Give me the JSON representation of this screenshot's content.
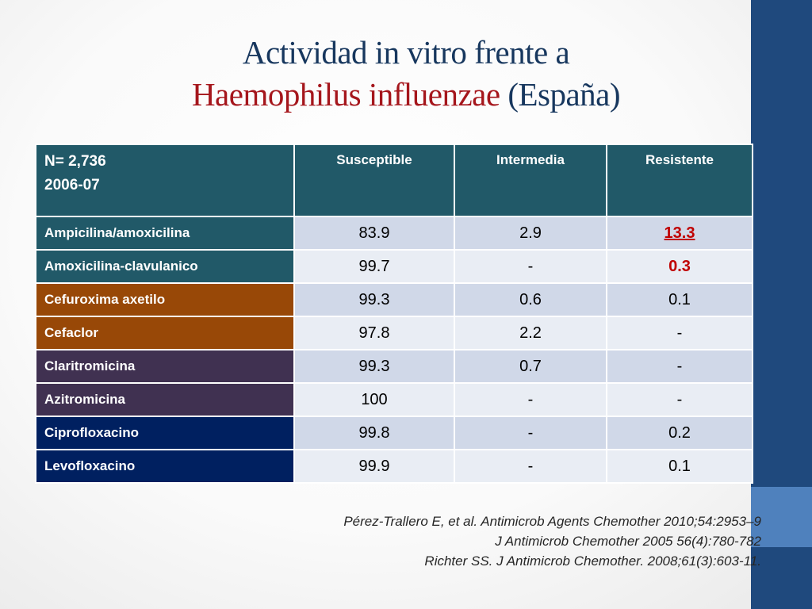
{
  "title": {
    "line1": "Actividad in vitro frente a",
    "organism": "Haemophilus influenzae",
    "country": "(España)"
  },
  "table": {
    "corner": {
      "n_label": "N= 2,736",
      "period": "2006-07"
    },
    "columns": [
      "Susceptible",
      "Intermedia",
      "Resistente"
    ],
    "rows": [
      {
        "drug": "Ampicilina/amoxicilina",
        "values": [
          "83.9",
          "2.9",
          "13.3"
        ]
      },
      {
        "drug": "Amoxicilina-clavulanico",
        "values": [
          "99.7",
          "-",
          "0.3"
        ]
      },
      {
        "drug": "Cefuroxima axetilo",
        "values": [
          "99.3",
          "0.6",
          "0.1"
        ]
      },
      {
        "drug": "Cefaclor",
        "values": [
          "97.8",
          "2.2",
          "-"
        ]
      },
      {
        "drug": "Claritromicina",
        "values": [
          "99.3",
          "0.7",
          "-"
        ]
      },
      {
        "drug": "Azitromicina",
        "values": [
          "100",
          "-",
          "-"
        ]
      },
      {
        "drug": "Ciprofloxacino",
        "values": [
          "99.8",
          "-",
          "0.2"
        ]
      },
      {
        "drug": "Levofloxacino",
        "values": [
          "99.9",
          "-",
          "0.1"
        ]
      }
    ]
  },
  "references": [
    "Pérez-Trallero E, et al. Antimicrob Agents Chemother 2010;54:2953–9",
    "J Antimicrob Chemother  2005 56(4):780-782",
    "Richter SS. J Antimicrob Chemother. 2008;61(3):603-11."
  ],
  "colors": {
    "title": "#17375e",
    "organism": "#a5161c",
    "header": "#215968",
    "alert": "#c00000",
    "sidebar": "#1f497d"
  }
}
